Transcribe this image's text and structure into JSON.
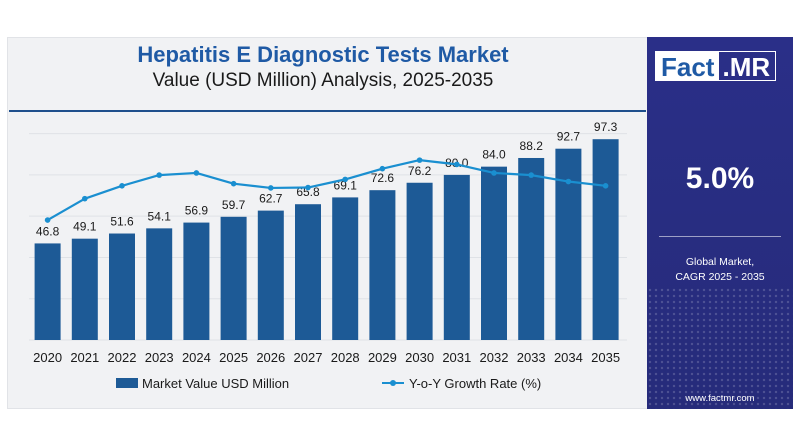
{
  "chart_data": {
    "type": "bar",
    "title": "Hepatitis E Diagnostic Tests Market",
    "subtitle": "Value (USD Million) Analysis, 2025-2035",
    "categories": [
      "2020",
      "2021",
      "2022",
      "2023",
      "2024",
      "2025",
      "2026",
      "2027",
      "2028",
      "2029",
      "2030",
      "2031",
      "2032",
      "2033",
      "2034",
      "2035"
    ],
    "series": [
      {
        "name": "Market Value USD Million",
        "type": "bar",
        "color": "#1d5a96",
        "values": [
          46.8,
          49.1,
          51.6,
          54.1,
          56.9,
          59.7,
          62.7,
          65.8,
          69.1,
          72.6,
          76.2,
          80.0,
          84.0,
          88.2,
          92.7,
          97.3
        ],
        "labels": [
          "46.8",
          "49.1",
          "51.6",
          "54.1",
          "56.9",
          "59.7",
          "62.7",
          "65.8",
          "69.1",
          "72.6",
          "76.2",
          "80.0",
          "84.0",
          "88.2",
          "92.7",
          "97.3"
        ]
      },
      {
        "name": "Y-o-Y Growth Rate (%)",
        "type": "line",
        "color": "#1a8fd0",
        "values": [
          4.3,
          4.8,
          5.1,
          5.35,
          5.4,
          5.15,
          5.05,
          5.06,
          5.25,
          5.5,
          5.7,
          5.6,
          5.4,
          5.35,
          5.2,
          5.1
        ]
      }
    ],
    "ylim": [
      0,
      110
    ],
    "line_ylim": [
      1.5,
      6.8
    ],
    "grid": "horizontal",
    "legend": "bottom"
  },
  "brand": {
    "logo_left": "Fact",
    "logo_right": ".MR",
    "website": "www.factmr.com"
  },
  "cagr": {
    "value": "5.0%",
    "label_line1": "Global Market,",
    "label_line2": "CAGR 2025 - 2035"
  },
  "colors": {
    "bar": "#1d5a96",
    "line": "#1a8fd0",
    "title": "#1f5aa5",
    "panel": "#2a2f88"
  }
}
